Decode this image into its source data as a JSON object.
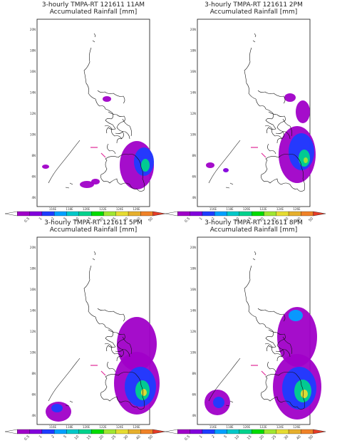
{
  "panels": [
    {
      "title": "3-hourly TMPA-RT 121611 11AM",
      "subtitle": "Accumulated Rainfall [mm]"
    },
    {
      "title": "3-hourly TMPA-RT 121611 2PM",
      "subtitle": "Accumulated Rainfall [mm]"
    },
    {
      "title": "3-hourly TMPA-RT 121611 5PM",
      "subtitle": "Accumulated Rainfall [mm]"
    },
    {
      "title": "3-hourly TMPA-RT 121611 8PM",
      "subtitle": "Accumulated Rainfall [mm]"
    }
  ],
  "lat_labels": [
    "20N",
    "18N",
    "16N",
    "14N",
    "12N",
    "10N",
    "8N",
    "6N",
    "4N"
  ],
  "lon_labels": [
    "116E",
    "118E",
    "120E",
    "122E",
    "124E",
    "126E"
  ],
  "colorbar_labels": [
    "0.5",
    "1",
    "2",
    "5",
    "10",
    "15",
    "20",
    "25",
    "30",
    "40",
    "50"
  ]
}
